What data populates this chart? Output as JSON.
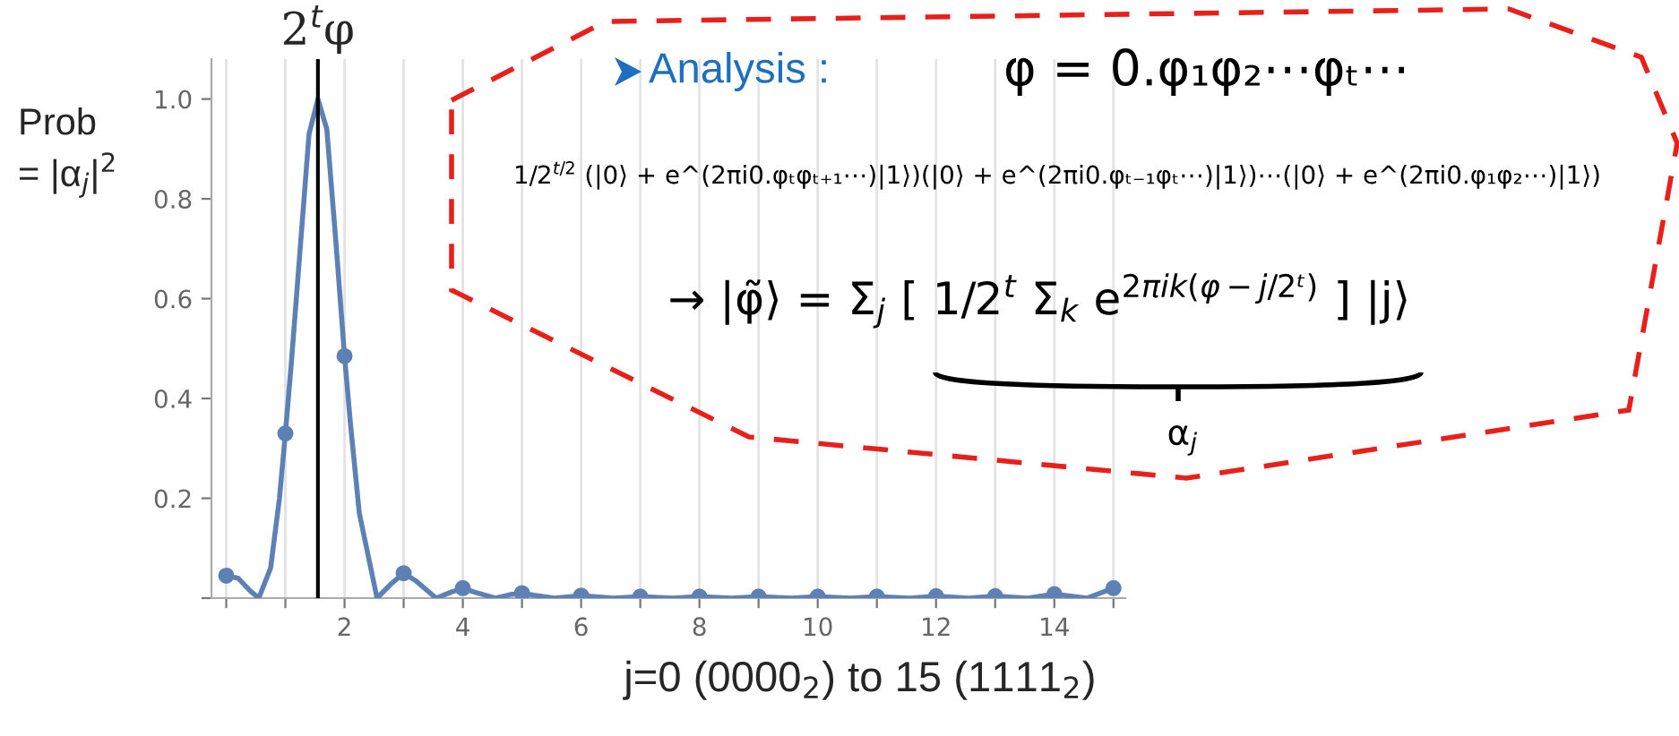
{
  "chart_data": {
    "type": "line",
    "xlabel": "j=0 (0000$_{2}$) to 15 (1111$_{2}$)",
    "ylabel": "Prob\n= |α$_{j}$|$^{2}$",
    "series": [
      {
        "color": "#5e81b5",
        "x": [
          0,
          0.2,
          0.4,
          0.55,
          0.75,
          0.9,
          1.0,
          1.1,
          1.25,
          1.4,
          1.55,
          1.7,
          1.85,
          2.0,
          2.1,
          2.25,
          2.55,
          2.8,
          3.0,
          3.2,
          3.55,
          3.8,
          4.0,
          4.2,
          4.55,
          4.8,
          5.0,
          5.2,
          5.55,
          6.0,
          6.55,
          7.0,
          7.55,
          8.0,
          8.55,
          9.0,
          9.55,
          10.0,
          10.55,
          11.0,
          11.55,
          12.0,
          12.55,
          13.0,
          13.55,
          14.0,
          14.55,
          15.0
        ],
        "values": [
          0.045,
          0.04,
          0.015,
          0,
          0.06,
          0.2,
          0.33,
          0.47,
          0.7,
          0.93,
          1.0,
          0.94,
          0.72,
          0.485,
          0.35,
          0.17,
          0,
          0.03,
          0.05,
          0.035,
          0,
          0.012,
          0.02,
          0.012,
          0,
          0.007,
          0.01,
          0.006,
          0,
          0.005,
          0,
          0.003,
          0,
          0.003,
          0,
          0.003,
          0,
          0.003,
          0,
          0.003,
          0,
          0.004,
          0,
          0.004,
          0,
          0.008,
          0,
          0.02
        ]
      },
      {
        "type": "scatter",
        "color": "#5e81b5",
        "marker": "circle",
        "x": [
          0,
          1,
          2,
          3,
          4,
          5,
          6,
          7,
          8,
          9,
          10,
          11,
          12,
          13,
          14,
          15
        ],
        "values": [
          0.045,
          0.33,
          0.485,
          0.05,
          0.02,
          0.01,
          0.005,
          0.003,
          0.003,
          0.003,
          0.003,
          0.003,
          0.004,
          0.004,
          0.008,
          0.02
        ]
      }
    ],
    "xlim": [
      -0.25,
      15.2
    ],
    "ylim": [
      0,
      1.08
    ],
    "xticks": [
      {
        "value": 0,
        "label": null
      },
      {
        "value": 1,
        "label": null
      },
      2,
      {
        "value": 3,
        "label": null
      },
      4,
      {
        "value": 5,
        "label": null
      },
      6,
      {
        "value": 7,
        "label": null
      },
      8,
      {
        "value": 9,
        "label": null
      },
      10,
      {
        "value": 11,
        "label": null
      },
      12,
      {
        "value": 13,
        "label": null
      },
      14,
      {
        "value": 15,
        "label": null
      }
    ],
    "yticks": [
      {
        "value": 0,
        "label": null
      },
      0.2,
      0.4,
      0.6,
      0.8,
      {
        "value": 1.0,
        "label": "1.0"
      }
    ],
    "grid": "x",
    "ref_lines": [
      {
        "axis": "x",
        "value": 1.55,
        "label": "2$^{t}$φ",
        "color": "#000000",
        "line_style": "solid"
      }
    ],
    "annotations": [
      "Analysis :",
      "φ = 0.φ₁φ₂⋯φₜ⋯",
      "1/2$^{t/2}$ (|0⟩ + e^(2πi0.φₜφₜ₊₁⋯)|1⟩)(|0⟩ + e^(2πi0.φₜ₋₁φₜ⋯)|1⟩)⋯(|0⟩ + e^(2πi0.φ₁φ₂⋯)|1⟩)",
      "→ |φ̃⟩ = Σ$_{j}$ [ 1/2$^{t}$ Σ$_{k}$ e$^{2πik(φ−j/2ᵗ)}$ ] |j⟩",
      "α$_{j}$"
    ]
  }
}
